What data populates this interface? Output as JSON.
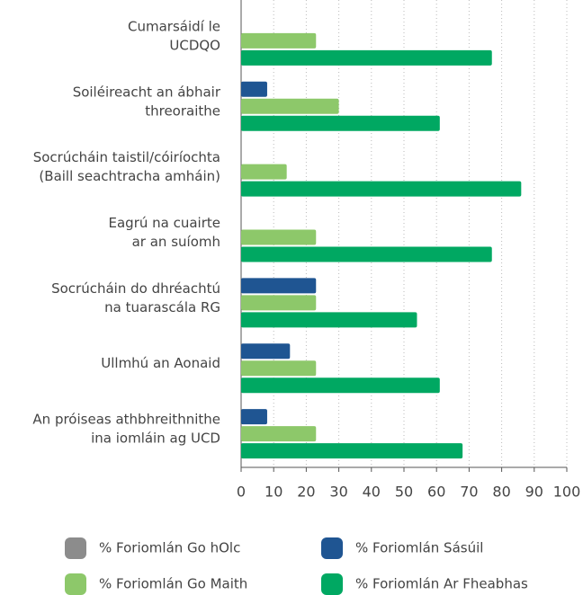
{
  "chart_data": {
    "type": "hbar",
    "categories": [
      [
        "Cumarsáidí le",
        "UCDQO"
      ],
      [
        "Soiléireacht an ábhair",
        "threoraithe"
      ],
      [
        "Socrúcháin taistil/cóiríochta",
        "(Baill seachtracha amháin)"
      ],
      [
        "Eagrú na cuairte",
        "ar an suíomh"
      ],
      [
        "Socrúcháin do dhréachtú",
        "na tuarascála RG"
      ],
      [
        "Ullmhú an Aonaid"
      ],
      [
        "An próiseas athbhreithnithe",
        "ina iomláin ag UCD"
      ]
    ],
    "series": [
      {
        "name": "% Foriomlán Go hOlc",
        "color": "#8c8c8c",
        "values": [
          0,
          0,
          0,
          0,
          0,
          0,
          0
        ]
      },
      {
        "name": "% Foriomlán Sásúil",
        "color": "#1f5592",
        "values": [
          0,
          8,
          0,
          0,
          23,
          15,
          8
        ]
      },
      {
        "name": "% Foriomlán Go Maith",
        "color": "#8dc86a",
        "values": [
          23,
          30,
          14,
          23,
          23,
          23,
          23
        ]
      },
      {
        "name": "% Foriomlán Ar Fheabhas",
        "color": "#00a862",
        "values": [
          77,
          61,
          86,
          77,
          54,
          61,
          68
        ]
      }
    ],
    "xlim": [
      0,
      100
    ],
    "xticks": [
      0,
      10,
      20,
      30,
      40,
      50,
      60,
      70,
      80,
      90,
      100
    ],
    "grid": true
  }
}
